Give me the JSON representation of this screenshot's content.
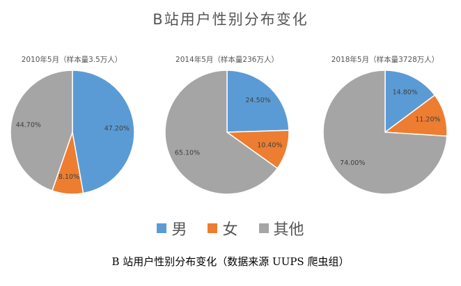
{
  "title": "B站用户性别分布变化",
  "legend": [
    {
      "label": "男",
      "color": "#5B9BD5"
    },
    {
      "label": "女",
      "color": "#ED7D31"
    },
    {
      "label": "其他",
      "color": "#A5A5A5"
    }
  ],
  "caption": "B 站用户性别分布变化（数据来源 UUPS 爬虫组）",
  "chart_data": [
    {
      "type": "pie",
      "title": "2010年5月（样本量3.5万人）",
      "categories": [
        "男",
        "女",
        "其他"
      ],
      "values": [
        47.2,
        8.1,
        44.7
      ],
      "labels": [
        "47.20%",
        "8.10%",
        "44.70%"
      ],
      "colors": [
        "#5B9BD5",
        "#ED7D31",
        "#A5A5A5"
      ]
    },
    {
      "type": "pie",
      "title": "2014年5月（样本量236万人）",
      "categories": [
        "男",
        "女",
        "其他"
      ],
      "values": [
        24.5,
        10.4,
        65.1
      ],
      "labels": [
        "24.50%",
        "10.40%",
        "65.10%"
      ],
      "colors": [
        "#5B9BD5",
        "#ED7D31",
        "#A5A5A5"
      ]
    },
    {
      "type": "pie",
      "title": "2018年5月（样本量3728万人）",
      "categories": [
        "男",
        "女",
        "其他"
      ],
      "values": [
        14.8,
        11.2,
        74.0
      ],
      "labels": [
        "14.80%",
        "11.20%",
        "74.00%"
      ],
      "colors": [
        "#5B9BD5",
        "#ED7D31",
        "#A5A5A5"
      ]
    }
  ]
}
